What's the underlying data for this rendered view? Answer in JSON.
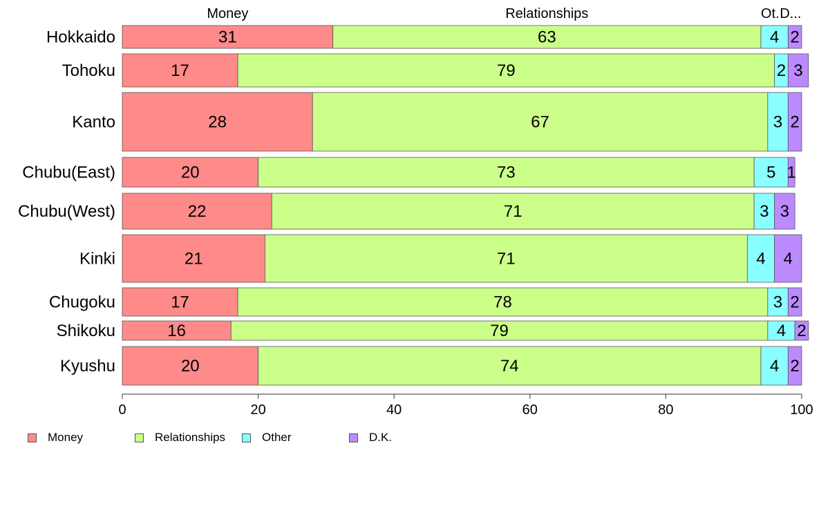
{
  "chart_data": {
    "type": "bar",
    "orientation": "horizontal",
    "stacked": true,
    "categories": [
      "Hokkaido",
      "Tohoku",
      "Kanto",
      "Chubu(East)",
      "Chubu(West)",
      "Kinki",
      "Chugoku",
      "Shikoku",
      "Kyushu"
    ],
    "series": [
      {
        "name": "Money",
        "top_label": "Money",
        "color": "#ff8a8a",
        "values": [
          31,
          17,
          28,
          20,
          22,
          21,
          17,
          16,
          20
        ]
      },
      {
        "name": "Relationships",
        "top_label": "Relationships",
        "color": "#ccff8a",
        "values": [
          63,
          79,
          67,
          73,
          71,
          71,
          78,
          79,
          74
        ]
      },
      {
        "name": "Other",
        "top_label": "Ot.",
        "color": "#8affff",
        "values": [
          4,
          2,
          3,
          5,
          3,
          4,
          3,
          4,
          4
        ]
      },
      {
        "name": "D.K.",
        "top_label": "D...",
        "color": "#bb8aff",
        "values": [
          2,
          3,
          2,
          1,
          3,
          4,
          2,
          2,
          2
        ]
      }
    ],
    "xlim": [
      0,
      100
    ],
    "xticks": [
      0,
      20,
      40,
      60,
      80,
      100
    ],
    "legend_position": "bottom-left",
    "grid": false
  }
}
